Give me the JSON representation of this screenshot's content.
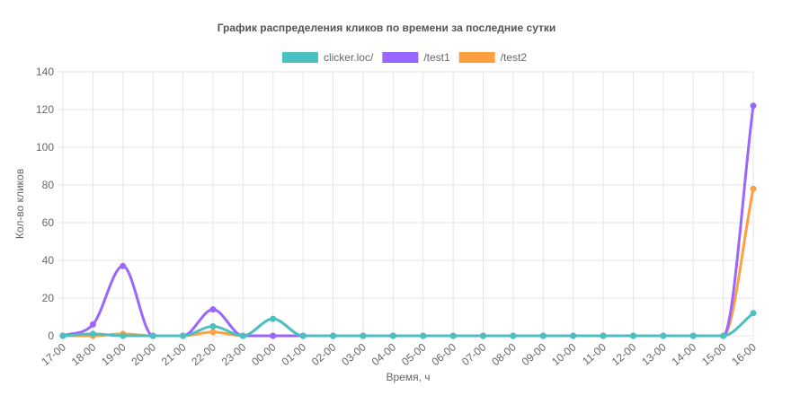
{
  "chart_data": {
    "type": "line",
    "title": "График распределения кликов по времени за последние сутки",
    "xlabel": "Время, ч",
    "ylabel": "Кол-во кликов",
    "ylim": [
      0,
      140
    ],
    "yticks": [
      0,
      20,
      40,
      60,
      80,
      100,
      120,
      140
    ],
    "grid": true,
    "legend_position": "top",
    "categories": [
      "17-00",
      "18-00",
      "19-00",
      "20-00",
      "21-00",
      "22-00",
      "23-00",
      "00-00",
      "01-00",
      "02-00",
      "03-00",
      "04-00",
      "05-00",
      "06-00",
      "07-00",
      "08-00",
      "09-00",
      "10-00",
      "11-00",
      "12-00",
      "13-00",
      "14-00",
      "15-00",
      "16-00"
    ],
    "series": [
      {
        "name": "clicker.loc/",
        "color": "#4bc0c0",
        "values": [
          0,
          1,
          0,
          0,
          0,
          5,
          0,
          9,
          0,
          0,
          0,
          0,
          0,
          0,
          0,
          0,
          0,
          0,
          0,
          0,
          0,
          0,
          0,
          12
        ]
      },
      {
        "name": "/test1",
        "color": "#9966ff",
        "values": [
          0,
          6,
          37,
          0,
          0,
          14,
          0,
          0,
          0,
          0,
          0,
          0,
          0,
          0,
          0,
          0,
          0,
          0,
          0,
          0,
          0,
          0,
          0,
          122
        ]
      },
      {
        "name": "/test2",
        "color": "#ff9f40",
        "values": [
          0,
          0,
          1,
          0,
          0,
          2,
          0,
          0,
          0,
          0,
          0,
          0,
          0,
          0,
          0,
          0,
          0,
          0,
          0,
          0,
          0,
          0,
          0,
          78
        ]
      }
    ]
  }
}
